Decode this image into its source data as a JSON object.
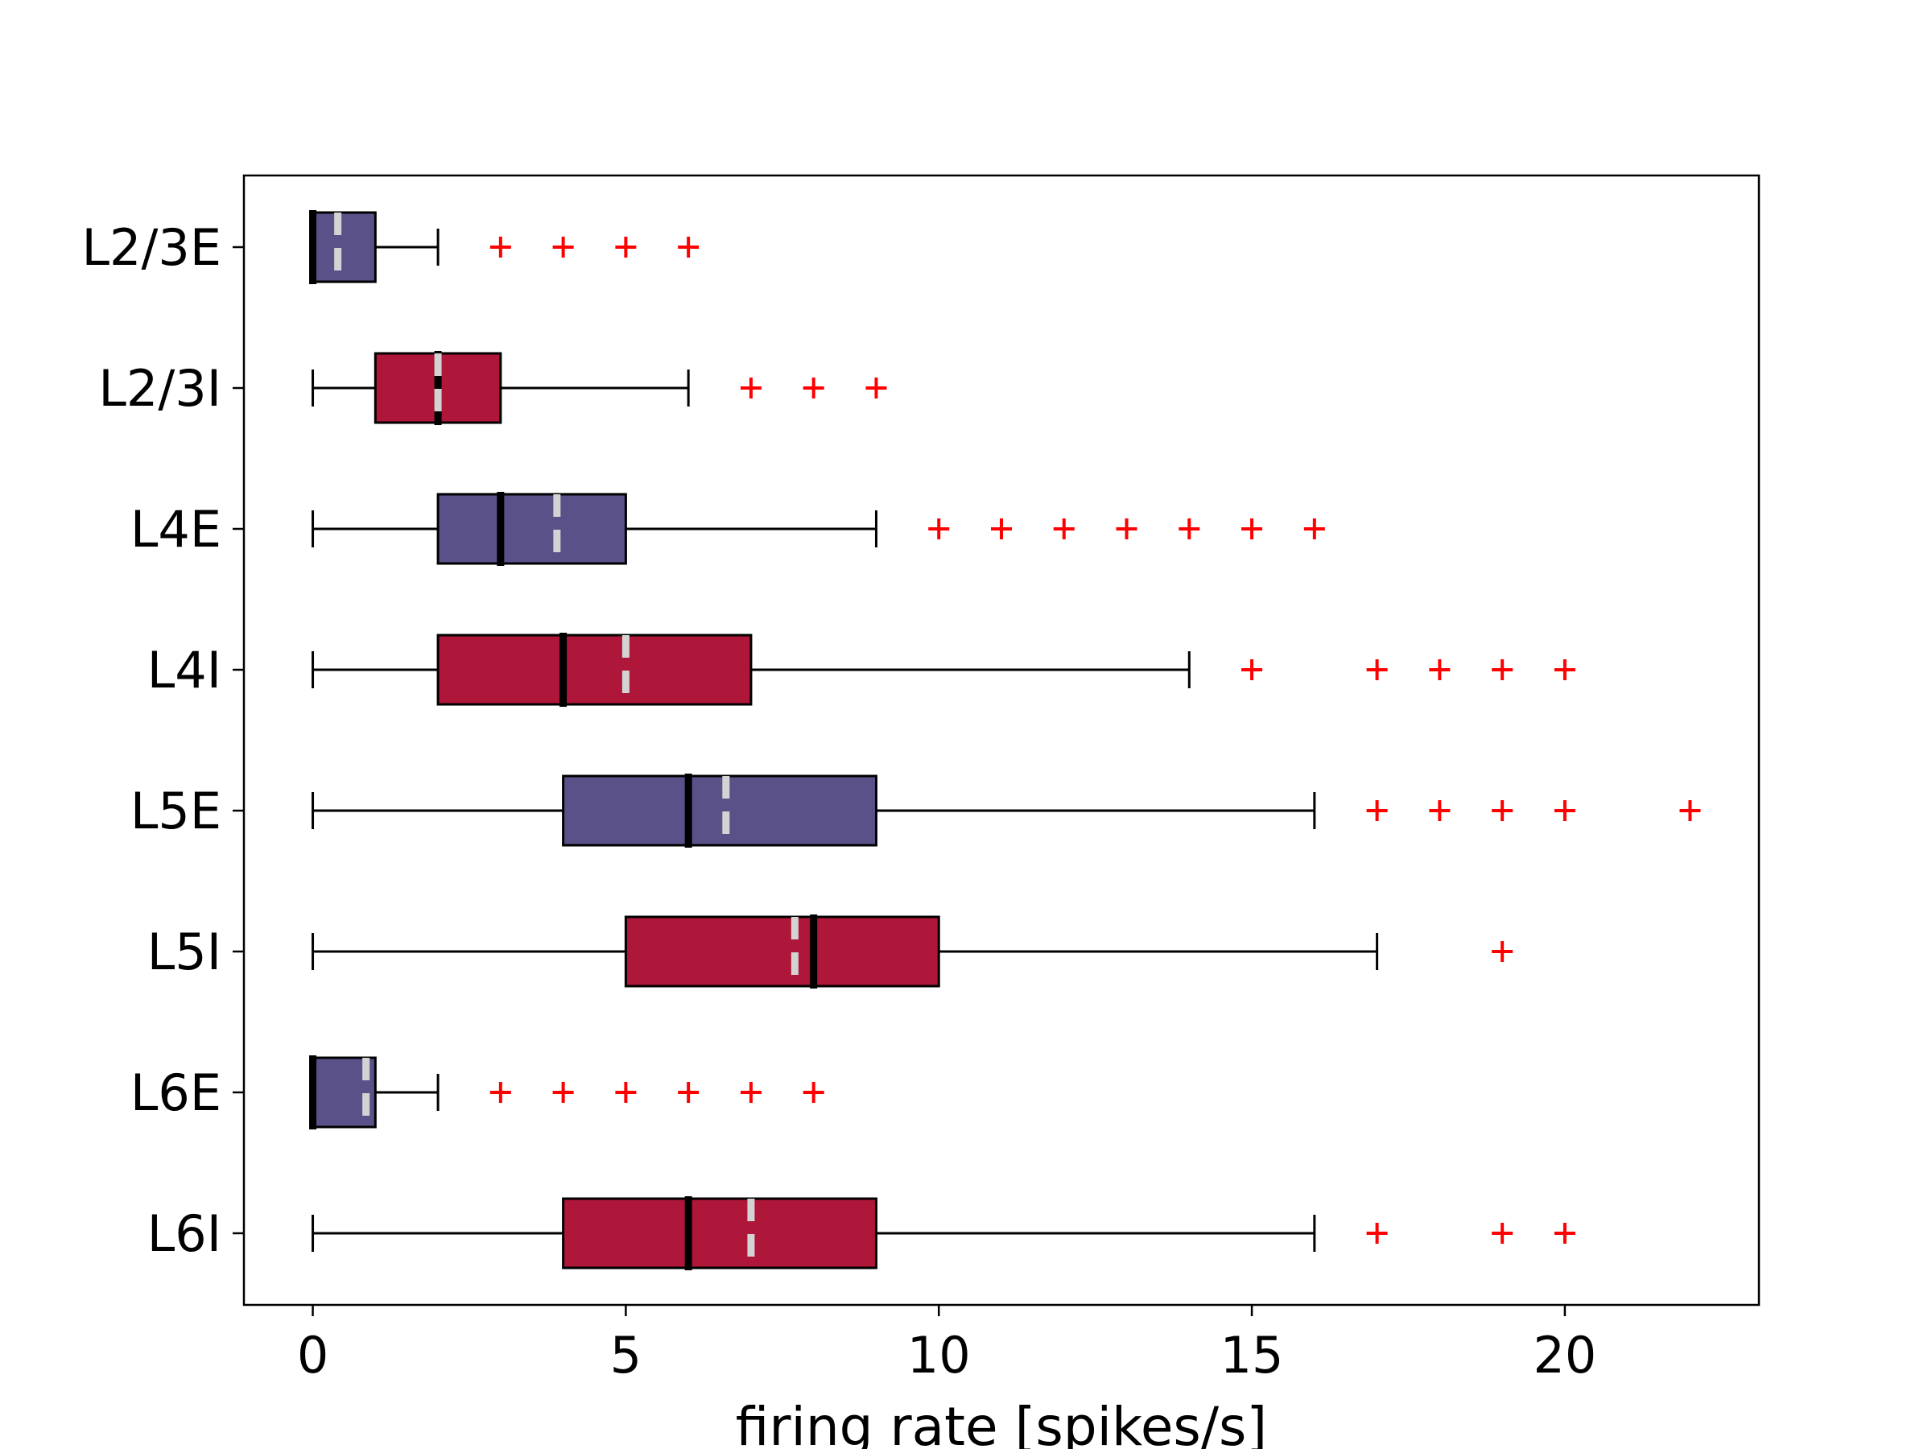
{
  "chart_data": {
    "type": "boxplot",
    "orientation": "horizontal",
    "xlabel": "firing rate [spikes/s]",
    "ylabel": "",
    "xlim": [
      -1.1,
      23.1
    ],
    "xticks": [
      0,
      5,
      10,
      15,
      20
    ],
    "xtick_labels": [
      "0",
      "5",
      "10",
      "15",
      "20"
    ],
    "grid": false,
    "colors": {
      "E": "#5a5189",
      "I": "#ae163a",
      "median": "#000000",
      "mean": "#d3d3d3",
      "flier": "#ff0000"
    },
    "categories": [
      "L2/3E",
      "L2/3I",
      "L4E",
      "L4I",
      "L5E",
      "L5I",
      "L6E",
      "L6I"
    ],
    "boxes": [
      {
        "label": "L2/3E",
        "type": "E",
        "whislo": 0,
        "q1": 0,
        "med": 0,
        "mean": 0.4,
        "q3": 1,
        "whishi": 2,
        "fliers": [
          3,
          4,
          5,
          6
        ]
      },
      {
        "label": "L2/3I",
        "type": "I",
        "whislo": 0,
        "q1": 1,
        "med": 2,
        "mean": 2,
        "q3": 3,
        "whishi": 6,
        "fliers": [
          7,
          8,
          9
        ]
      },
      {
        "label": "L4E",
        "type": "E",
        "whislo": 0,
        "q1": 2,
        "med": 3,
        "mean": 3.9,
        "q3": 5,
        "whishi": 9,
        "fliers": [
          10,
          11,
          12,
          13,
          14,
          15,
          16
        ]
      },
      {
        "label": "L4I",
        "type": "I",
        "whislo": 0,
        "q1": 2,
        "med": 4,
        "mean": 5,
        "q3": 7,
        "whishi": 14,
        "fliers": [
          15,
          17,
          18,
          19,
          20
        ]
      },
      {
        "label": "L5E",
        "type": "E",
        "whislo": 0,
        "q1": 4,
        "med": 6,
        "mean": 6.6,
        "q3": 9,
        "whishi": 16,
        "fliers": [
          17,
          18,
          19,
          20,
          22
        ]
      },
      {
        "label": "L5I",
        "type": "I",
        "whislo": 0,
        "q1": 5,
        "med": 8,
        "mean": 7.7,
        "q3": 10,
        "whishi": 17,
        "fliers": [
          19
        ]
      },
      {
        "label": "L6E",
        "type": "E",
        "whislo": 0,
        "q1": 0,
        "med": 0,
        "mean": 0.85,
        "q3": 1,
        "whishi": 2,
        "fliers": [
          3,
          4,
          5,
          6,
          7,
          8
        ]
      },
      {
        "label": "L6I",
        "type": "I",
        "whislo": 0,
        "q1": 4,
        "med": 6,
        "mean": 7,
        "q3": 9,
        "whishi": 16,
        "fliers": [
          17,
          19,
          20
        ]
      }
    ]
  }
}
